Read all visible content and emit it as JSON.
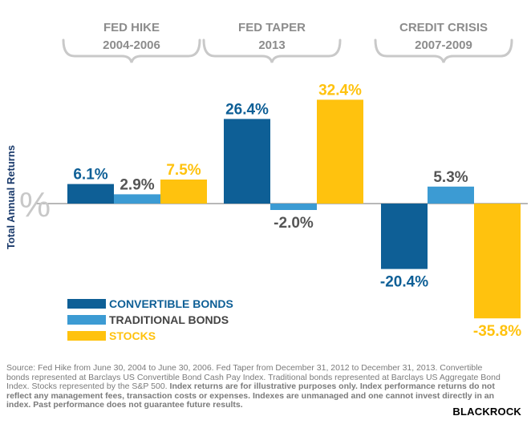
{
  "chart_data": {
    "type": "bar",
    "ylabel": "Total Annual Returns",
    "unit_sign": "%",
    "groups": [
      {
        "title_line1": "FED HIKE",
        "title_line2": "2004-2006"
      },
      {
        "title_line1": "FED TAPER",
        "title_line2": "2013"
      },
      {
        "title_line1": "CREDIT CRISIS",
        "title_line2": "2007-2009"
      }
    ],
    "series": [
      {
        "name": "CONVERTIBLE BONDS",
        "color": "#0e5f96",
        "label_color": "#0e5f96",
        "values": [
          6.1,
          26.4,
          -20.4
        ],
        "labels": [
          "6.1%",
          "26.4%",
          "-20.4%"
        ]
      },
      {
        "name": "TRADITIONAL BONDS",
        "color": "#3c9bd3",
        "label_color": "#555555",
        "values": [
          2.9,
          -2.0,
          5.3
        ],
        "labels": [
          "2.9%",
          "-2.0%",
          "5.3%"
        ]
      },
      {
        "name": "STOCKS",
        "color": "#ffc20e",
        "label_color": "#ffc20e",
        "values": [
          7.5,
          32.4,
          -35.8
        ],
        "labels": [
          "7.5%",
          "32.4%",
          "-35.8%"
        ]
      }
    ]
  },
  "footnote": {
    "plain": "Source: Fed Hike from June 30, 2004 to June 30, 2006. Fed Taper from December 31, 2012 to December 31, 2013. Convertible bonds represented at Barclays US Convertible Bond Cash Pay Index. Traditional bonds represented at Barclays US Aggregate Bond Index. Stocks represented by the S&P 500.",
    "bold": "Index returns are for illustrative purposes only. Index performance returns do not reflect any management fees, transaction costs or expenses. Indexes are unmanaged and one cannot invest directly in an index. Past performance does not guarantee future results."
  },
  "brand": "BLACKROCK"
}
